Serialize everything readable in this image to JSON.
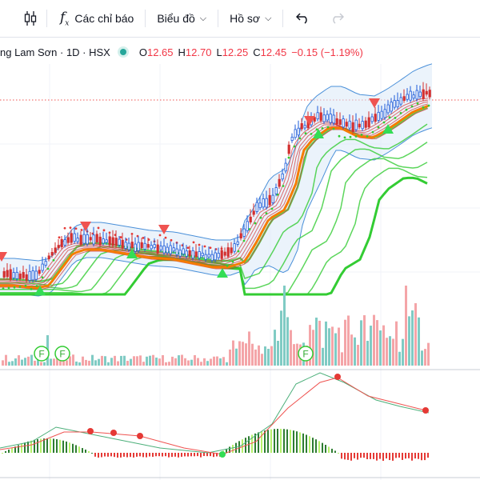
{
  "toolbar": {
    "indicators_label": "Các chỉ báo",
    "chart_type_label": "Biểu đồ",
    "profile_label": "Hồ sơ"
  },
  "legend": {
    "symbol_text": "ng Lam Sơn · 1D · HSX",
    "o_key": "O",
    "o_val": "12.65",
    "h_key": "H",
    "h_val": "12.70",
    "l_key": "L",
    "l_val": "12.25",
    "c_key": "C",
    "c_val": "12.45",
    "change": "−0.15 (−1.19%)"
  },
  "markers": {
    "f_label": "F"
  },
  "colors": {
    "up": "#26a69a",
    "down": "#ef5350",
    "volume_up": "#80cbc4",
    "volume_down": "#f4a5a8",
    "band": "#4a90d9",
    "ma_orange": "#f57c00",
    "ma_green": "#33cc33",
    "accent_dot": "#26a69a"
  },
  "icons": [
    "candles-icon",
    "fx-icon",
    "chevron-down-icon",
    "undo-icon",
    "redo-icon"
  ]
}
